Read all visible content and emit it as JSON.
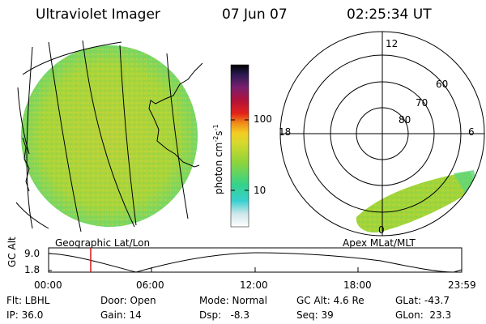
{
  "header": {
    "instrument": "Ultraviolet Imager",
    "date": "07 Jun 07",
    "time": "02:25:34 UT"
  },
  "colorbar": {
    "unit_label": "photon cm",
    "unit_sup1": "-2",
    "unit_mid": "s",
    "unit_sup2": "-1",
    "ticks": [
      "100",
      "10"
    ]
  },
  "polar_plot": {
    "mlt_labels": {
      "top": "12",
      "left": "18",
      "right": "6",
      "bottom": "0"
    },
    "lat_labels": [
      "60",
      "70",
      "80"
    ]
  },
  "panel_labels": {
    "geographic": "Geographic Lat/Lon",
    "apex": "Apex MLat/MLT"
  },
  "altitude_plot": {
    "axis_label": "GC Alt",
    "y_ticks": [
      "9.0",
      "1.8"
    ],
    "x_ticks": [
      "00:00",
      "06:00",
      "12:00",
      "18:00",
      "23:59"
    ],
    "marker_time": "02:25"
  },
  "info": {
    "flt": "Flt: LBHL",
    "ip": "IP: 36.0",
    "door": "Door: Open",
    "gain": "Gain: 14",
    "mode": "Mode: Normal",
    "dsp": "Dsp:   -8.3",
    "gc_alt": "GC Alt: 4.6 Re",
    "seq": "Seq: 39",
    "glat": "GLat: -43.7",
    "glon": "GLon:  23.3"
  },
  "colors": {
    "image_fill": "#9ad33a",
    "image_edge": "#4fd88a",
    "marker": "#d41414"
  }
}
